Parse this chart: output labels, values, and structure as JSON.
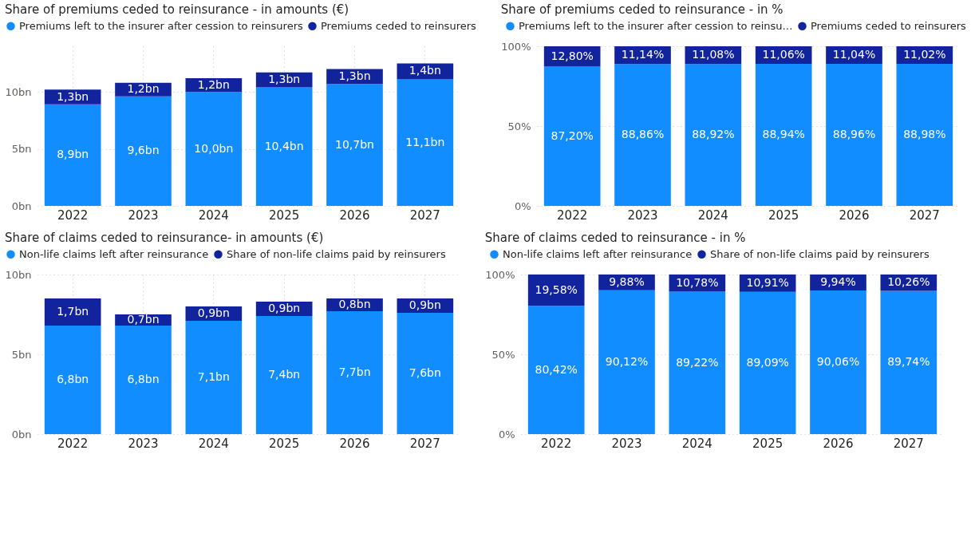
{
  "chart_data": [
    {
      "type": "bar",
      "title": "Share of premiums ceded to reinsurance - in amounts (€)",
      "stacked": true,
      "legend": "top",
      "grid": true,
      "categories": [
        "2022",
        "2023",
        "2024",
        "2025",
        "2026",
        "2027"
      ],
      "ylim": [
        0,
        14
      ],
      "yticks": [
        {
          "value": 0,
          "label": "0bn"
        },
        {
          "value": 5,
          "label": "5bn"
        },
        {
          "value": 10,
          "label": "10bn"
        }
      ],
      "series": [
        {
          "name": "Premiums left to the insurer after cession to reinsurers",
          "color": "#118dff",
          "values": [
            8.9,
            9.6,
            10.0,
            10.4,
            10.7,
            11.1
          ],
          "value_labels": [
            "8,9bn",
            "9,6bn",
            "10,0bn",
            "10,4bn",
            "10,7bn",
            "11,1bn"
          ]
        },
        {
          "name": "Premiums ceded to reinsurers",
          "color": "#12239e",
          "values": [
            1.3,
            1.2,
            1.2,
            1.3,
            1.3,
            1.4
          ],
          "value_labels": [
            "1,3bn",
            "1,2bn",
            "1,2bn",
            "1,3bn",
            "1,3bn",
            "1,4bn"
          ]
        }
      ]
    },
    {
      "type": "bar",
      "title": "Share of premiums ceded to reinsurance - in %",
      "stacked": true,
      "legend": "top",
      "grid": true,
      "categories": [
        "2022",
        "2023",
        "2024",
        "2025",
        "2026",
        "2027"
      ],
      "ylim": [
        0,
        100
      ],
      "yticks": [
        {
          "value": 0,
          "label": "0%"
        },
        {
          "value": 50,
          "label": "50%"
        },
        {
          "value": 100,
          "label": "100%"
        }
      ],
      "series": [
        {
          "name": "Premiums left to the insurer after cession to reinsu…",
          "color": "#118dff",
          "values": [
            87.2,
            88.86,
            88.92,
            88.94,
            88.96,
            88.98
          ],
          "value_labels": [
            "87,20%",
            "88,86%",
            "88,92%",
            "88,94%",
            "88,96%",
            "88,98%"
          ]
        },
        {
          "name": "Premiums ceded to reinsurers",
          "color": "#12239e",
          "values": [
            12.8,
            11.14,
            11.08,
            11.06,
            11.04,
            11.02
          ],
          "value_labels": [
            "12,80%",
            "11,14%",
            "11,08%",
            "11,06%",
            "11,04%",
            "11,02%"
          ]
        }
      ]
    },
    {
      "type": "bar",
      "title": "Share of claims ceded to reinsurance- in amounts (€)",
      "stacked": true,
      "legend": "top",
      "grid": true,
      "categories": [
        "2022",
        "2023",
        "2024",
        "2025",
        "2026",
        "2027"
      ],
      "ylim": [
        0,
        10
      ],
      "yticks": [
        {
          "value": 0,
          "label": "0bn"
        },
        {
          "value": 5,
          "label": "5bn"
        },
        {
          "value": 10,
          "label": "10bn"
        }
      ],
      "series": [
        {
          "name": "Non-life claims left after reinsurance",
          "color": "#118dff",
          "values": [
            6.8,
            6.8,
            7.1,
            7.4,
            7.7,
            7.6
          ],
          "value_labels": [
            "6,8bn",
            "6,8bn",
            "7,1bn",
            "7,4bn",
            "7,7bn",
            "7,6bn"
          ]
        },
        {
          "name": "Share of non-life claims paid by reinsurers",
          "color": "#12239e",
          "values": [
            1.7,
            0.7,
            0.9,
            0.9,
            0.8,
            0.9
          ],
          "value_labels": [
            "1,7bn",
            "0,7bn",
            "0,9bn",
            "0,9bn",
            "0,8bn",
            "0,9bn"
          ]
        }
      ]
    },
    {
      "type": "bar",
      "title": "Share of claims ceded to reinsurance - in %",
      "stacked": true,
      "legend": "top",
      "grid": true,
      "categories": [
        "2022",
        "2023",
        "2024",
        "2025",
        "2026",
        "2027"
      ],
      "ylim": [
        0,
        100
      ],
      "yticks": [
        {
          "value": 0,
          "label": "0%"
        },
        {
          "value": 50,
          "label": "50%"
        },
        {
          "value": 100,
          "label": "100%"
        }
      ],
      "series": [
        {
          "name": "Non-life claims left after reinsurance",
          "color": "#118dff",
          "values": [
            80.42,
            90.12,
            89.22,
            89.09,
            90.06,
            89.74
          ],
          "value_labels": [
            "80,42%",
            "90,12%",
            "89,22%",
            "89,09%",
            "90,06%",
            "89,74%"
          ]
        },
        {
          "name": "Share of non-life claims paid by reinsurers",
          "color": "#12239e",
          "values": [
            19.58,
            9.88,
            10.78,
            10.91,
            9.94,
            10.26
          ],
          "value_labels": [
            "19,58%",
            "9,88%",
            "10,78%",
            "10,91%",
            "9,94%",
            "10,26%"
          ]
        }
      ]
    }
  ]
}
